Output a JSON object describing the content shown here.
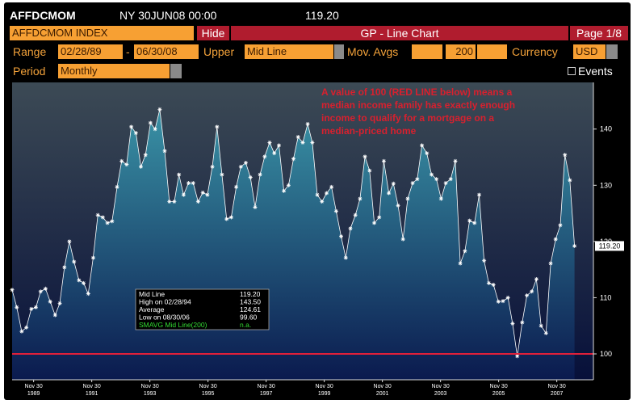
{
  "header": {
    "ticker": "AFFDCMOM",
    "time": "NY 30JUN08 00:00",
    "price": "119.20"
  },
  "toolbar": {
    "security": "AFFDCMOM INDEX",
    "hide": "Hide",
    "function": "GP - Line Chart",
    "page": "Page 1/8"
  },
  "controls": {
    "range_label": "Range",
    "start": "02/28/89",
    "dash": "-",
    "end": "06/30/08",
    "upper_label": "Upper",
    "upper": "Mid Line",
    "mov_avgs_label": "Mov. Avgs",
    "mov_avg": "200",
    "currency_label": "Currency",
    "currency": "USD",
    "period_label": "Period",
    "period": "Monthly",
    "events": "Events"
  },
  "chart_data": {
    "type": "line",
    "annotation": [
      "A value of 100 (RED LINE below) means a",
      "median income family has exactly enough",
      "income to qualify for a mortgage on a",
      "median-priced home"
    ],
    "x": [
      1989.17,
      1989.33,
      1989.5,
      1989.66,
      1989.83,
      1989.99,
      1990.15,
      1990.32,
      1990.48,
      1990.65,
      1990.81,
      1990.97,
      1991.14,
      1991.3,
      1991.47,
      1991.63,
      1991.79,
      1991.96,
      1992.12,
      1992.29,
      1992.45,
      1992.61,
      1992.78,
      1992.94,
      1993.11,
      1993.27,
      1993.43,
      1993.6,
      1993.76,
      1993.93,
      1994.09,
      1994.25,
      1994.42,
      1994.58,
      1994.75,
      1994.91,
      1995.07,
      1995.24,
      1995.4,
      1995.57,
      1995.73,
      1995.89,
      1996.06,
      1996.22,
      1996.39,
      1996.55,
      1996.71,
      1996.88,
      1997.04,
      1997.21,
      1997.37,
      1997.53,
      1997.7,
      1997.86,
      1998.03,
      1998.19,
      1998.35,
      1998.52,
      1998.68,
      1998.85,
      1999.01,
      1999.17,
      1999.34,
      1999.5,
      1999.67,
      1999.83,
      1999.99,
      2000.16,
      2000.32,
      2000.49,
      2000.65,
      2000.81,
      2000.98,
      2001.14,
      2001.31,
      2001.47,
      2001.63,
      2001.8,
      2001.96,
      2002.13,
      2002.29,
      2002.45,
      2002.62,
      2002.78,
      2002.95,
      2003.11,
      2003.27,
      2003.44,
      2003.6,
      2003.77,
      2003.93,
      2004.09,
      2004.26,
      2004.42,
      2004.59,
      2004.75,
      2004.91,
      2005.08,
      2005.24,
      2005.41,
      2005.57,
      2005.73,
      2005.9,
      2006.06,
      2006.23,
      2006.39,
      2006.55,
      2006.72,
      2006.88,
      2007.05,
      2007.21,
      2007.37,
      2007.54,
      2007.7,
      2007.87,
      2008.03,
      2008.19,
      2008.36,
      2008.52
    ],
    "series": [
      {
        "name": "Mid Line",
        "color": "#ffffff",
        "values": [
          111.4,
          108.3,
          104,
          104.7,
          108,
          108.3,
          111.1,
          111.6,
          109.3,
          106.9,
          109,
          115.4,
          120,
          116.4,
          113.1,
          112.6,
          110.7,
          117.1,
          124.7,
          124.3,
          123.3,
          123.6,
          129.7,
          134.3,
          133.7,
          140.4,
          139.3,
          133.3,
          135.4,
          141.1,
          140,
          143.5,
          136.1,
          127.1,
          127.1,
          131.9,
          128.3,
          130.4,
          130.4,
          127.1,
          128.7,
          128.3,
          133.3,
          140.4,
          131.9,
          124,
          124.3,
          129.7,
          133.3,
          134,
          131.4,
          126.1,
          131.9,
          135.1,
          137.6,
          135.7,
          137.1,
          129,
          130,
          134.7,
          138.6,
          137.6,
          140.9,
          137.6,
          128.3,
          127.1,
          128.6,
          129.7,
          125.4,
          120.9,
          117.1,
          122.3,
          124.7,
          127.6,
          135.1,
          132.6,
          123.3,
          124.3,
          134.3,
          128.6,
          130.3,
          126.4,
          120.4,
          127.6,
          130.4,
          131.1,
          137.1,
          135.7,
          131.9,
          131.1,
          127.6,
          130.4,
          131.1,
          134.3,
          116.1,
          118.3,
          123.7,
          123.3,
          128.3,
          116.6,
          112.6,
          112.3,
          109.3,
          109.4,
          110,
          105.4,
          99.6,
          105.6,
          110.4,
          111.1,
          113.3,
          105,
          103.7,
          116.1,
          120.4,
          122.9,
          135.4,
          130.9,
          119.2
        ]
      }
    ],
    "last_label": {
      "value": 119.2,
      "label": "119.20"
    },
    "reference_line": {
      "value": 100,
      "color": "#e0203a"
    },
    "xlim": [
      1989.17,
      2009.17
    ],
    "xticks": [
      {
        "value": 1989.91,
        "label": [
          "Nov 30",
          "1989"
        ]
      },
      {
        "value": 1991.91,
        "label": [
          "Nov 30",
          "1991"
        ]
      },
      {
        "value": 1993.91,
        "label": [
          "Nov 30",
          "1993"
        ]
      },
      {
        "value": 1995.91,
        "label": [
          "Nov 30",
          "1995"
        ]
      },
      {
        "value": 1997.91,
        "label": [
          "Nov 30",
          "1997"
        ]
      },
      {
        "value": 1999.91,
        "label": [
          "Nov 30",
          "1999"
        ]
      },
      {
        "value": 2001.91,
        "label": [
          "Nov 30",
          "2001"
        ]
      },
      {
        "value": 2003.91,
        "label": [
          "Nov 30",
          "2003"
        ]
      },
      {
        "value": 2005.91,
        "label": [
          "Nov 30",
          "2005"
        ]
      },
      {
        "value": 2007.91,
        "label": [
          "Nov 30",
          "2007"
        ]
      }
    ],
    "ylim": [
      95.4,
      148.3
    ],
    "yticks": [
      100,
      110,
      120,
      130,
      140
    ],
    "stats": [
      {
        "label": "Mid Line",
        "value": "119.20",
        "color": "#ffffff"
      },
      {
        "label": "High on 02/28/94",
        "value": "143.50",
        "color": "#ffffff"
      },
      {
        "label": "Average",
        "value": "124.61",
        "color": "#ffffff"
      },
      {
        "label": "Low on 08/30/06",
        "value": "99.60",
        "color": "#ffffff"
      },
      {
        "label": "SMAVG Mid Line(200)",
        "value": "n.a.",
        "color": "#33dd33"
      }
    ]
  }
}
